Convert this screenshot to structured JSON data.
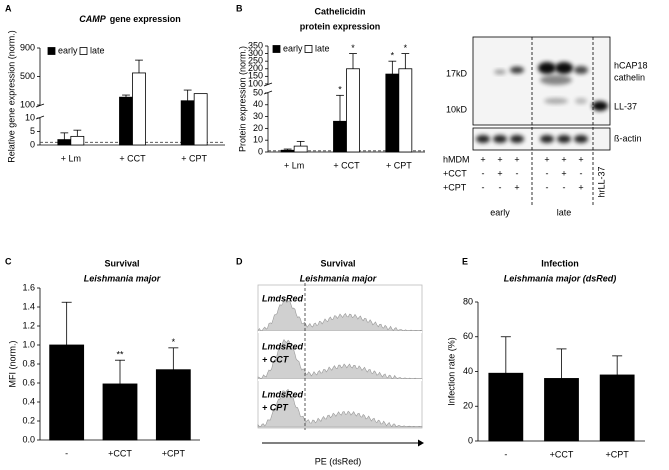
{
  "chart_data": [
    {
      "type": "bar",
      "label": "A",
      "title_gene": "CAMP",
      "title": "gene expression",
      "y_label": "Relative gene expression (norm.)",
      "categories": [
        "+ Lm",
        "+ CCT",
        "+ CPT"
      ],
      "series": [
        {
          "name": "early",
          "color": "#000000",
          "values": [
            2,
            210,
            160
          ],
          "errors": [
            2.5,
            30,
            150
          ]
        },
        {
          "name": "late",
          "color": "#ffffff",
          "values": [
            3.2,
            550,
            260
          ],
          "errors": [
            2.3,
            180,
            null
          ]
        }
      ],
      "ylim": [
        0,
        900
      ],
      "axis_break": [
        10,
        100
      ],
      "yticks": [
        0,
        5,
        10,
        100,
        500,
        900
      ],
      "reference_line": 1,
      "legend": "top-left"
    },
    {
      "type": "bar",
      "label": "B",
      "title": "Cathelicidin",
      "subtitle": "protein expression",
      "y_label": "Protein expression (norm.)",
      "categories": [
        "+ Lm",
        "+ CCT",
        "+ CPT"
      ],
      "series": [
        {
          "name": "early",
          "color": "#000000",
          "values": [
            1.5,
            26,
            165
          ],
          "errors": [
            1,
            22,
            85
          ],
          "significance": [
            null,
            "*",
            "*"
          ]
        },
        {
          "name": "late",
          "color": "#ffffff",
          "values": [
            5,
            200,
            200
          ],
          "errors": [
            4,
            100,
            100
          ],
          "significance": [
            null,
            "*",
            "*"
          ]
        }
      ],
      "ylim": [
        0,
        350
      ],
      "axis_break": [
        50,
        100
      ],
      "yticks": [
        0,
        10,
        20,
        30,
        40,
        50,
        100,
        150,
        200,
        250,
        300,
        350
      ],
      "reference_line": 1,
      "legend": "top-left"
    },
    {
      "type": "bar",
      "label": "C",
      "title": "Survival",
      "subtitle": "Leishmania major",
      "y_label": "MFI (norm.)",
      "categories": [
        "-",
        "+CCT",
        "+CPT"
      ],
      "values": [
        1.0,
        0.59,
        0.74
      ],
      "errors": [
        0.45,
        0.25,
        0.23
      ],
      "significance": [
        null,
        "**",
        "*"
      ],
      "color": "#000000",
      "ylim": [
        0,
        1.6
      ],
      "yticks": [
        {
          "value": 0,
          "label": "0.0"
        },
        0.2,
        0.4,
        0.6,
        0.8,
        {
          "value": 1,
          "label": "1.0"
        },
        1.2,
        1.4,
        1.6
      ]
    },
    {
      "type": "bar",
      "label": "E",
      "title": "Infection",
      "subtitle": "Leishmania major (dsRed)",
      "y_label": "Infection rate (%)",
      "categories": [
        "-",
        "+CCT",
        "+CPT"
      ],
      "values": [
        39,
        36,
        38
      ],
      "errors": [
        21,
        17,
        11
      ],
      "color": "#000000",
      "ylim": [
        0,
        80
      ],
      "yticks": [
        0,
        20,
        40,
        60,
        80
      ]
    }
  ],
  "blot": {
    "size_labels": [
      "17kD",
      "10kD"
    ],
    "band_labels": [
      "hCAP18",
      "cathelin",
      "LL-37",
      "ß-actin"
    ],
    "rows": [
      {
        "label": "hMDM",
        "signs": [
          "+",
          "+",
          "+",
          "+",
          "+",
          "+"
        ]
      },
      {
        "label": "+CCT",
        "signs": [
          "-",
          "+",
          "-",
          "-",
          "+",
          "-"
        ]
      },
      {
        "label": "+CPT",
        "signs": [
          "-",
          "-",
          "+",
          "-",
          "-",
          "+"
        ]
      }
    ],
    "groups": [
      "early",
      "late"
    ],
    "standard": "hrLL-37"
  },
  "panel_d": {
    "label": "D",
    "title": "Survival",
    "subtitle": "Leishmania major",
    "rows": [
      [
        "LmdsRed"
      ],
      [
        "LmdsRed",
        "+ CCT"
      ],
      [
        "LmdsRed",
        "+ CPT"
      ]
    ],
    "x_label": "PE (dsRed)"
  }
}
